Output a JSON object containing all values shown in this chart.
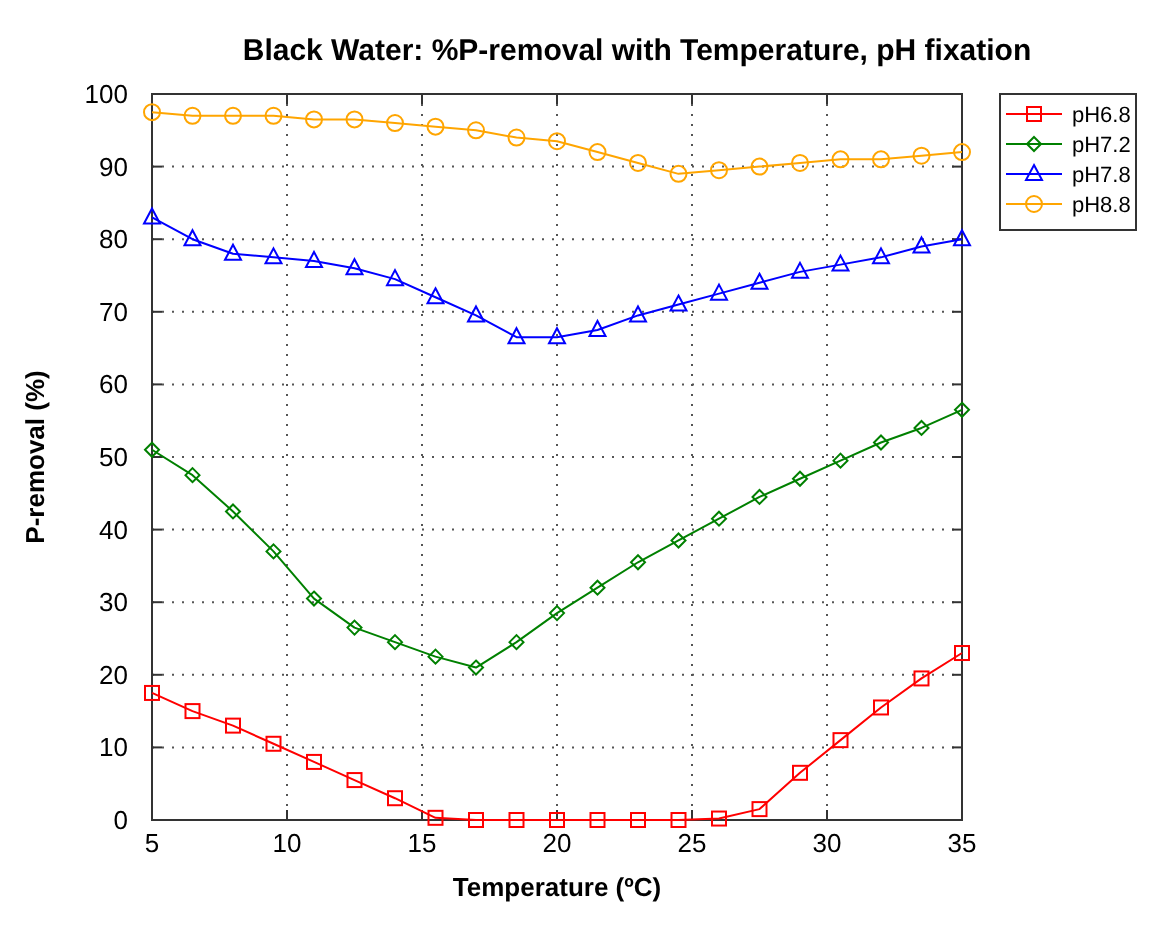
{
  "chart_data": {
    "type": "line",
    "title": "Black Water: %P-removal with Temperature, pH fixation",
    "xlabel": "Temperature (ºC)",
    "ylabel": "P-removal (%)",
    "x": [
      5,
      6.5,
      8,
      9.5,
      11,
      12.5,
      14,
      15.5,
      17,
      18.5,
      20,
      21.5,
      23,
      24.5,
      26,
      27.5,
      29,
      30.5,
      32,
      33.5,
      35
    ],
    "series": [
      {
        "name": "pH6.8",
        "color": "#ff0000",
        "marker": "square",
        "values": [
          17.5,
          15,
          13,
          10.5,
          8,
          5.5,
          3,
          0.3,
          0,
          0,
          0,
          0,
          0,
          0,
          0.2,
          1.5,
          6.5,
          11,
          15.5,
          19.5,
          23
        ]
      },
      {
        "name": "pH7.2",
        "color": "#008000",
        "marker": "diamond",
        "values": [
          51,
          47.5,
          42.5,
          37,
          30.5,
          26.5,
          24.5,
          22.5,
          21,
          24.5,
          28.5,
          32,
          35.5,
          38.5,
          41.5,
          44.5,
          47,
          49.5,
          52,
          54,
          56.5
        ]
      },
      {
        "name": "pH7.8",
        "color": "#0000ff",
        "marker": "triangle",
        "values": [
          83,
          80,
          78,
          77.5,
          77,
          76,
          74.5,
          72,
          69.5,
          66.5,
          66.5,
          67.5,
          69.5,
          71,
          72.5,
          74,
          75.5,
          76.5,
          77.5,
          79,
          80
        ]
      },
      {
        "name": "pH8.8",
        "color": "#ffa500",
        "marker": "circle",
        "values": [
          97.5,
          97,
          97,
          97,
          96.5,
          96.5,
          96,
          95.5,
          95,
          94,
          93.5,
          92,
          90.5,
          89,
          89.5,
          90,
          90.5,
          91,
          91,
          91.5,
          92
        ]
      }
    ],
    "xlim": [
      5,
      35
    ],
    "xticks": [
      5,
      10,
      15,
      20,
      25,
      30,
      35
    ],
    "ylim": [
      0,
      100
    ],
    "yticks": [
      0,
      10,
      20,
      30,
      40,
      50,
      60,
      70,
      80,
      90,
      100
    ],
    "grid": true,
    "legend": "top right",
    "line_style": "solid"
  }
}
